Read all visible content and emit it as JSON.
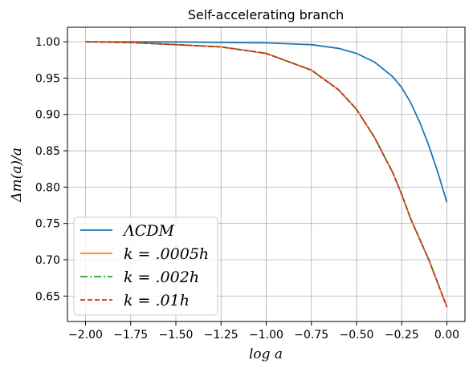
{
  "chart_data": {
    "type": "line",
    "title": "Self-accelerating branch",
    "xlabel": "log a",
    "ylabel": "Δm(a)/a",
    "xlim": [
      -2.1,
      0.1
    ],
    "ylim": [
      0.615,
      1.02
    ],
    "grid": true,
    "legend_position": "lower-left",
    "x_ticks": [
      -2.0,
      -1.75,
      -1.5,
      -1.25,
      -1.0,
      -0.75,
      -0.5,
      -0.25,
      0.0
    ],
    "x_tick_labels": [
      "−2.00",
      "−1.75",
      "−1.50",
      "−1.25",
      "−1.00",
      "−0.75",
      "−0.50",
      "−0.25",
      "0.00"
    ],
    "y_ticks": [
      0.65,
      0.7,
      0.75,
      0.8,
      0.85,
      0.9,
      0.95,
      1.0
    ],
    "y_tick_labels": [
      "0.65",
      "0.70",
      "0.75",
      "0.80",
      "0.85",
      "0.90",
      "0.95",
      "1.00"
    ],
    "series": [
      {
        "name": "ΛCDM",
        "color": "#1f77b4",
        "style": "solid",
        "x": [
          -2.0,
          -1.5,
          -1.0,
          -0.75,
          -0.6,
          -0.5,
          -0.4,
          -0.3,
          -0.25,
          -0.2,
          -0.15,
          -0.1,
          -0.05,
          0.0
        ],
        "y": [
          1.0,
          0.9998,
          0.9985,
          0.996,
          0.991,
          0.984,
          0.972,
          0.952,
          0.937,
          0.916,
          0.889,
          0.857,
          0.82,
          0.779
        ]
      },
      {
        "name": "k = .0005h",
        "color": "#ff7f0e",
        "style": "solid",
        "x": [
          -2.0,
          -1.75,
          -1.5,
          -1.25,
          -1.0,
          -0.75,
          -0.6,
          -0.5,
          -0.4,
          -0.3,
          -0.25,
          -0.2,
          -0.1,
          0.0
        ],
        "y": [
          1.0,
          0.999,
          0.996,
          0.993,
          0.984,
          0.961,
          0.934,
          0.907,
          0.868,
          0.82,
          0.79,
          0.756,
          0.7,
          0.635
        ]
      },
      {
        "name": "k = .002h",
        "color": "#2ca02c",
        "style": "dashdot",
        "x": [
          -2.0,
          -1.75,
          -1.5,
          -1.25,
          -1.0,
          -0.75,
          -0.6,
          -0.5,
          -0.4,
          -0.3,
          -0.25,
          -0.2,
          -0.1,
          0.0
        ],
        "y": [
          1.0,
          0.999,
          0.996,
          0.993,
          0.984,
          0.961,
          0.934,
          0.907,
          0.868,
          0.82,
          0.79,
          0.756,
          0.7,
          0.635
        ]
      },
      {
        "name": "k = .01h",
        "color": "#d62728",
        "style": "dashed",
        "x": [
          -2.0,
          -1.75,
          -1.5,
          -1.25,
          -1.0,
          -0.75,
          -0.6,
          -0.5,
          -0.4,
          -0.3,
          -0.25,
          -0.2,
          -0.1,
          0.0
        ],
        "y": [
          1.0,
          0.999,
          0.996,
          0.993,
          0.984,
          0.961,
          0.934,
          0.907,
          0.868,
          0.82,
          0.79,
          0.756,
          0.7,
          0.635
        ]
      }
    ]
  }
}
